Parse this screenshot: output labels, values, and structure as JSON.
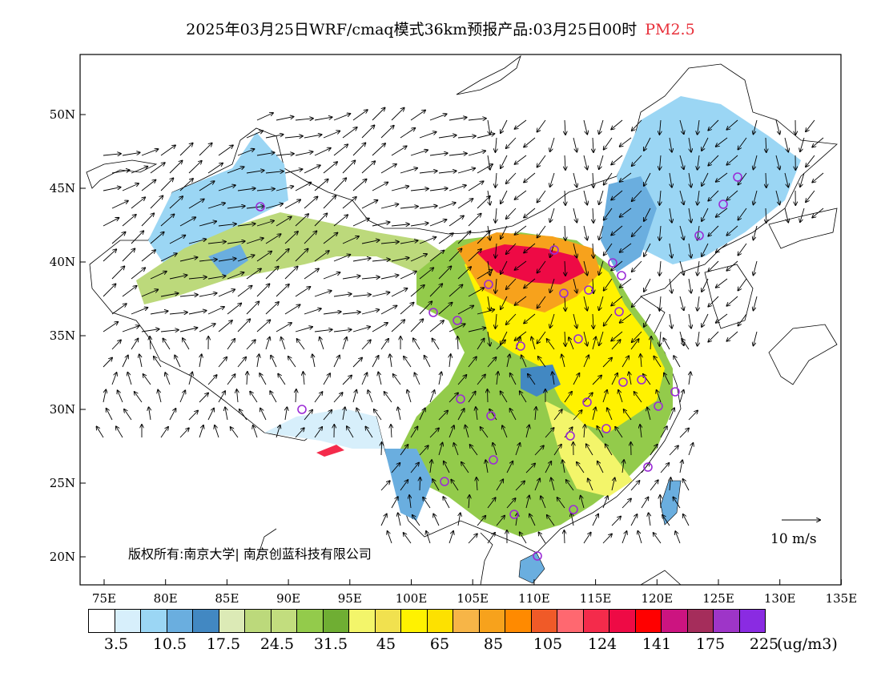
{
  "title": {
    "text": "2025年03月25日WRF/cmaq模式36km预报产品:03月25日00时",
    "pollutant": "PM2.5",
    "pollutant_color": "#e8303a"
  },
  "map": {
    "lat_ticks": [
      "50N",
      "45N",
      "40N",
      "35N",
      "30N",
      "25N",
      "20N"
    ],
    "lon_ticks": [
      "75E",
      "80E",
      "85E",
      "90E",
      "95E",
      "100E",
      "105E",
      "110E",
      "115E",
      "120E",
      "125E",
      "130E",
      "135E"
    ],
    "copyright": "版权所有:南京大学| 南京创蓝科技有限公司",
    "wind_reference": "10 m/s",
    "station_marker_color": "#9b2bd6"
  },
  "colorbar": {
    "colors": [
      "#ffffff",
      "#d7effb",
      "#9bd6f4",
      "#6aaedf",
      "#4288c2",
      "#dceab6",
      "#bcd97b",
      "#c2dd7e",
      "#93cb4b",
      "#6fae33",
      "#f3f56a",
      "#f1e14f",
      "#fff200",
      "#fde100",
      "#f7b547",
      "#f7a21c",
      "#ff8a00",
      "#f05a28",
      "#ff6870",
      "#f42b4b",
      "#ee0a45",
      "#ff0000",
      "#cc1480",
      "#a52d5b",
      "#9e35c8",
      "#8a2be2"
    ],
    "labels": [
      "3.5",
      "10.5",
      "17.5",
      "24.5",
      "31.5",
      "45",
      "65",
      "85",
      "105",
      "124",
      "141",
      "175",
      "225"
    ],
    "unit": "(ug/m3)"
  }
}
